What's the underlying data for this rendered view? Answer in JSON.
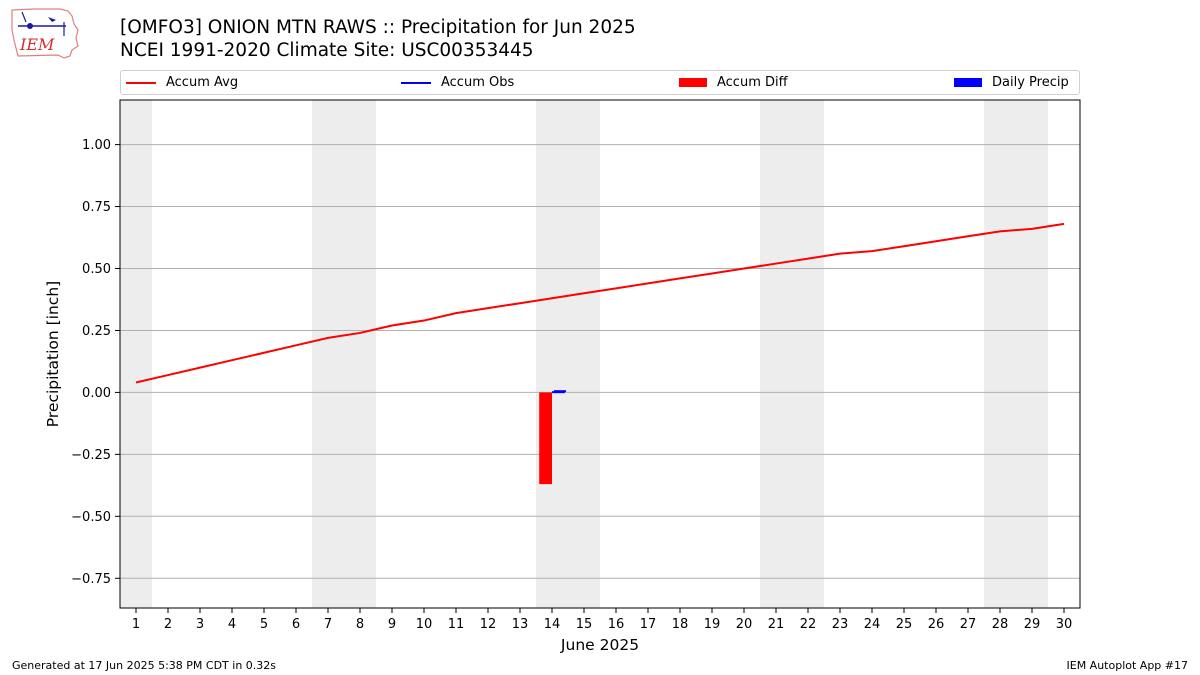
{
  "header": {
    "title_line1": "[OMFO3] ONION MTN RAWS :: Precipitation for Jun 2025",
    "title_line2": "NCEI 1991-2020 Climate Site: USC00353445",
    "logo_text": "IEM"
  },
  "legend": {
    "items": [
      {
        "label": "Accum Avg",
        "kind": "line",
        "color": "#ff0000"
      },
      {
        "label": "Accum Obs",
        "kind": "line",
        "color": "#0000ff"
      },
      {
        "label": "Accum Diff",
        "kind": "box",
        "color": "#ff0000"
      },
      {
        "label": "Daily Precip",
        "kind": "box",
        "color": "#0000ff"
      }
    ]
  },
  "footer": {
    "left": "Generated at 17 Jun 2025 5:38 PM CDT in 0.32s",
    "right": "IEM Autoplot App #17"
  },
  "chart_data": {
    "type": "line",
    "xlabel": "June 2025",
    "ylabel": "Precipitation [inch]",
    "xlim": [
      0.5,
      30.5
    ],
    "ylim": [
      -0.87,
      1.18
    ],
    "x": [
      1,
      2,
      3,
      4,
      5,
      6,
      7,
      8,
      9,
      10,
      11,
      12,
      13,
      14,
      15,
      16,
      17,
      18,
      19,
      20,
      21,
      22,
      23,
      24,
      25,
      26,
      27,
      28,
      29,
      30
    ],
    "x_tick_labels": [
      "1",
      "2",
      "3",
      "4",
      "5",
      "6",
      "7",
      "8",
      "9",
      "10",
      "11",
      "12",
      "13",
      "14",
      "15",
      "16",
      "17",
      "18",
      "19",
      "20",
      "21",
      "22",
      "23",
      "24",
      "25",
      "26",
      "27",
      "28",
      "29",
      "30"
    ],
    "y_ticks": [
      -0.75,
      -0.5,
      -0.25,
      0.0,
      0.25,
      0.5,
      0.75,
      1.0
    ],
    "y_tick_labels": [
      "−0.75",
      "−0.50",
      "−0.25",
      "0.00",
      "0.25",
      "0.50",
      "0.75",
      "1.00"
    ],
    "grid": "horizontal",
    "legend_position": "top",
    "weekend_shading_days": [
      1,
      7,
      8,
      14,
      15,
      21,
      22,
      28,
      29
    ],
    "weekend_shading_color": "#ededed",
    "series": [
      {
        "name": "Accum Avg",
        "kind": "line",
        "color": "#ff0000",
        "values": [
          0.04,
          0.07,
          0.1,
          0.13,
          0.16,
          0.19,
          0.22,
          0.24,
          0.27,
          0.29,
          0.32,
          0.34,
          0.36,
          0.38,
          0.4,
          0.42,
          0.44,
          0.46,
          0.48,
          0.5,
          0.52,
          0.54,
          0.56,
          0.57,
          0.59,
          0.61,
          0.63,
          0.65,
          0.66,
          0.68
        ]
      },
      {
        "name": "Accum Obs",
        "kind": "line",
        "color": "#0000ff",
        "points": [
          {
            "x": 14,
            "y": 0.005
          }
        ]
      },
      {
        "name": "Accum Diff",
        "kind": "bar",
        "color": "#ff0000",
        "points": [
          {
            "x": 14,
            "y": -0.37
          }
        ]
      },
      {
        "name": "Daily Precip",
        "kind": "bar",
        "color": "#0000ff",
        "points": [
          {
            "x": 14,
            "y": 0.005
          }
        ]
      }
    ]
  }
}
